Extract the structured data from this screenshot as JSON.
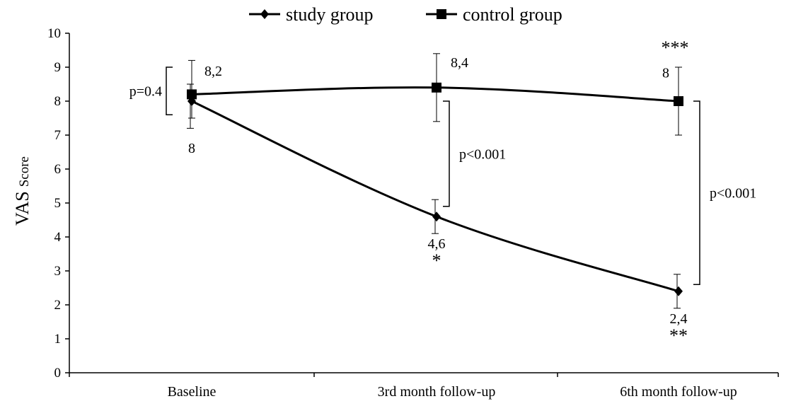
{
  "chart_data": {
    "type": "line",
    "categories": [
      "Baseline",
      "3rd month follow-up",
      "6th month follow-up"
    ],
    "ylabel": {
      "main": "VAS",
      "small": "Score"
    },
    "ylim": [
      0,
      10
    ],
    "yticks": [
      0,
      1,
      2,
      3,
      4,
      5,
      6,
      7,
      8,
      9,
      10
    ],
    "grid": false,
    "legend_position": "top-center",
    "series": [
      {
        "name": "study group",
        "marker": "diamond",
        "values": [
          8,
          4.6,
          2.4
        ],
        "error_low": [
          7.2,
          4.1,
          1.9
        ],
        "error_high": [
          8.5,
          5.1,
          2.9
        ],
        "labels": [
          "8",
          "4,6",
          "2,4"
        ],
        "significance": [
          "",
          "*",
          "**"
        ]
      },
      {
        "name": "control group",
        "marker": "square",
        "values": [
          8.2,
          8.4,
          8
        ],
        "error_low": [
          7.5,
          7.4,
          7.0
        ],
        "error_high": [
          9.2,
          9.4,
          9.0
        ],
        "labels": [
          "8,2",
          "8,4",
          "8"
        ],
        "significance": [
          "",
          "",
          "***"
        ]
      }
    ],
    "annotations": [
      {
        "text": "p=0.4",
        "category": 0,
        "y_from": 7.6,
        "y_to": 9.0,
        "side": "left"
      },
      {
        "text": "p<0.001",
        "category": 1,
        "y_from": 4.9,
        "y_to": 8.0,
        "side": "right"
      },
      {
        "text": "p<0.001",
        "category": 2,
        "y_from": 2.6,
        "y_to": 8.0,
        "side": "right"
      }
    ],
    "colors": {
      "line": "#000000",
      "background": "#ffffff"
    }
  }
}
